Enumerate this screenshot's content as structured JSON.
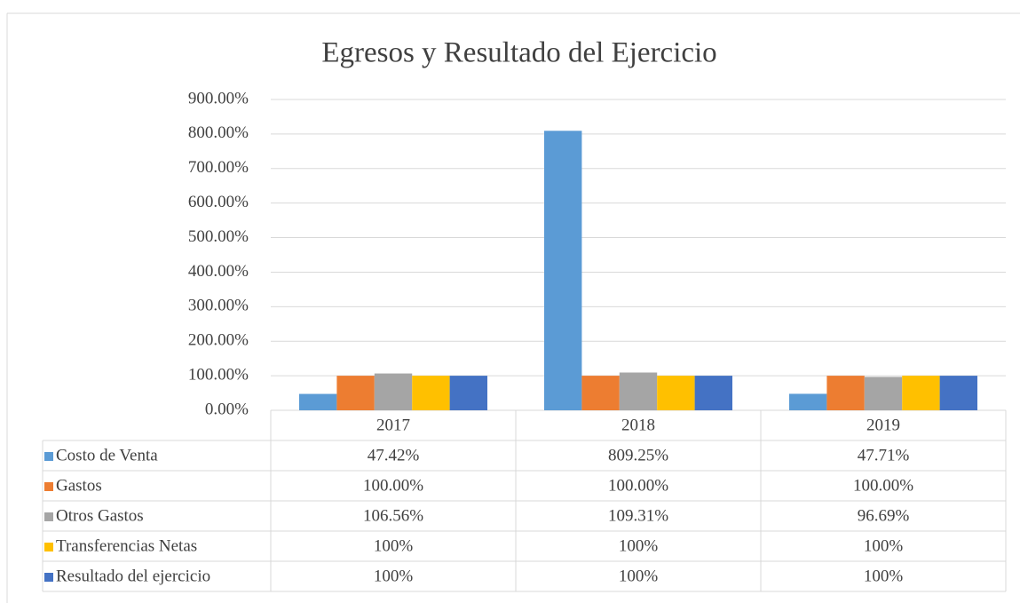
{
  "chart_data": {
    "type": "bar",
    "title": "Egresos y Resultado del Ejercicio",
    "categories": [
      "2017",
      "2018",
      "2019"
    ],
    "series": [
      {
        "name": "Costo de Venta",
        "color": "#5b9bd5",
        "values": [
          47.42,
          809.25,
          47.71
        ],
        "value_labels": [
          "47.42%",
          "809.25%",
          "47.71%"
        ]
      },
      {
        "name": "Gastos",
        "color": "#ed7d31",
        "values": [
          100,
          100,
          100
        ],
        "value_labels": [
          "100.00%",
          "100.00%",
          "100.00%"
        ]
      },
      {
        "name": "Otros Gastos",
        "color": "#a5a5a5",
        "values": [
          106.56,
          109.31,
          96.69
        ],
        "value_labels": [
          "106.56%",
          "109.31%",
          "96.69%"
        ]
      },
      {
        "name": "Transferencias Netas",
        "color": "#ffc000",
        "values": [
          100,
          100,
          100
        ],
        "value_labels": [
          "100%",
          "100%",
          "100%"
        ]
      },
      {
        "name": "Resultado del ejercicio",
        "color": "#4472c4",
        "values": [
          100,
          100,
          100
        ],
        "value_labels": [
          "100%",
          "100%",
          "100%"
        ]
      }
    ],
    "ylim": [
      0,
      900
    ],
    "yticks": [
      {
        "value": 0,
        "label": "0.00%"
      },
      {
        "value": 100,
        "label": "100.00%"
      },
      {
        "value": 200,
        "label": "200.00%"
      },
      {
        "value": 300,
        "label": "300.00%"
      },
      {
        "value": 400,
        "label": "400.00%"
      },
      {
        "value": 500,
        "label": "500.00%"
      },
      {
        "value": 600,
        "label": "600.00%"
      },
      {
        "value": 700,
        "label": "700.00%"
      },
      {
        "value": 800,
        "label": "800.00%"
      },
      {
        "value": 900,
        "label": "900.00%"
      }
    ],
    "grid": true
  }
}
